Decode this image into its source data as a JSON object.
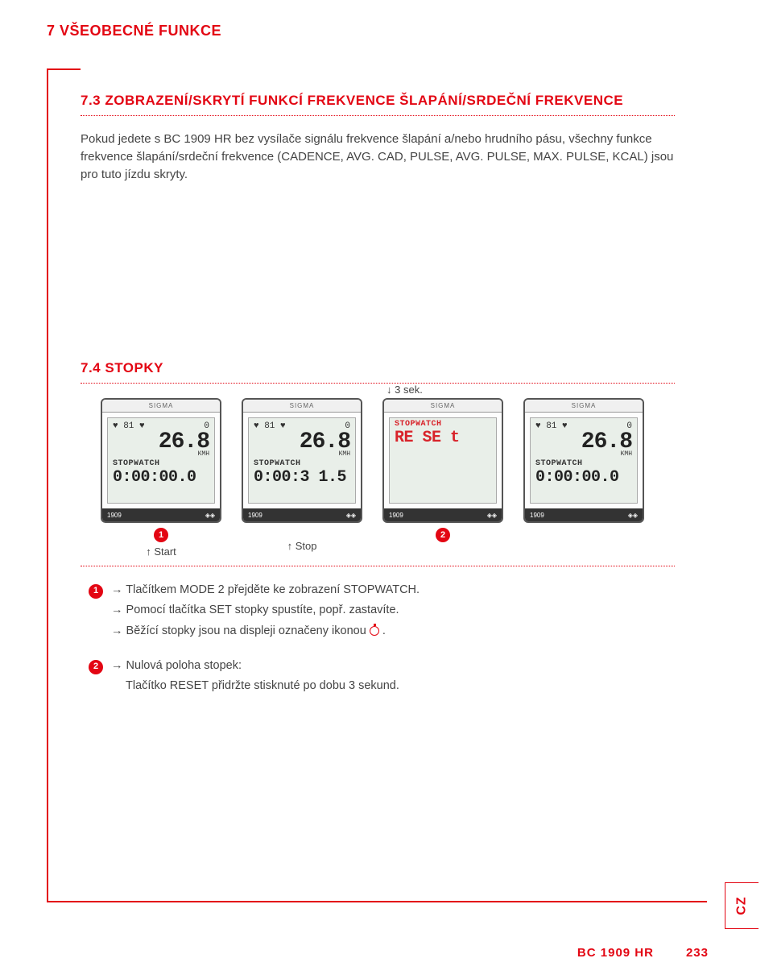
{
  "page_title": "7 VŠEOBECNÉ FUNKCE",
  "section73": {
    "title": "7.3 ZOBRAZENÍ/SKRYTÍ FUNKCÍ FREKVENCE ŠLAPÁNÍ/SRDEČNÍ FREKVENCE",
    "paragraph": "Pokud jedete s BC 1909 HR bez vysílače signálu frekvence šlapání a/nebo hrudního pásu, všechny funkce frekvence šlapání/srdeční frekvence (CADENCE, AVG. CAD, PULSE, AVG. PULSE, MAX. PULSE, KCAL) jsou pro tuto jízdu skryty."
  },
  "section74": {
    "title": "7.4 STOPKY",
    "hold_label": "3 sek.",
    "start_label": "Start",
    "stop_label": "Stop",
    "devices": [
      {
        "brand": "SIGMA",
        "top_left": "81",
        "top_right": "0",
        "speed": "26.8",
        "unit": "KMH",
        "label": "STOPWATCH",
        "value": "0:00:00.0",
        "model": "1909",
        "red": false
      },
      {
        "brand": "SIGMA",
        "top_left": "81",
        "top_right": "0",
        "speed": "26.8",
        "unit": "KMH",
        "label": "STOPWATCH",
        "value": "0:00:3 1.5",
        "model": "1909",
        "red": false
      },
      {
        "brand": "SIGMA",
        "top_left": "",
        "top_right": "",
        "speed": "",
        "unit": "",
        "label": "STOPWATCH",
        "value": "RE SE t",
        "model": "1909",
        "red": true
      },
      {
        "brand": "SIGMA",
        "top_left": "81",
        "top_right": "0",
        "speed": "26.8",
        "unit": "KMH",
        "label": "STOPWATCH",
        "value": "0:00:00.0",
        "model": "1909",
        "red": false
      }
    ],
    "instr1_l1": "Tlačítkem MODE 2 přejděte ke zobrazení STOPWATCH.",
    "instr1_l2": "Pomocí tlačítka SET stopky spustíte, popř. zastavíte.",
    "instr1_l3_a": "Běžící stopky jsou na displeji označeny ikonou ",
    "instr1_l3_b": ".",
    "instr2_l1": "Nulová poloha stopek:",
    "instr2_l2": "Tlačítko RESET přidržte stisknuté po dobu 3 sekund."
  },
  "lang_tab": "CZ",
  "footer_model": "BC 1909 HR",
  "footer_page": "233",
  "colors": {
    "accent": "#e30613",
    "text": "#444444"
  }
}
